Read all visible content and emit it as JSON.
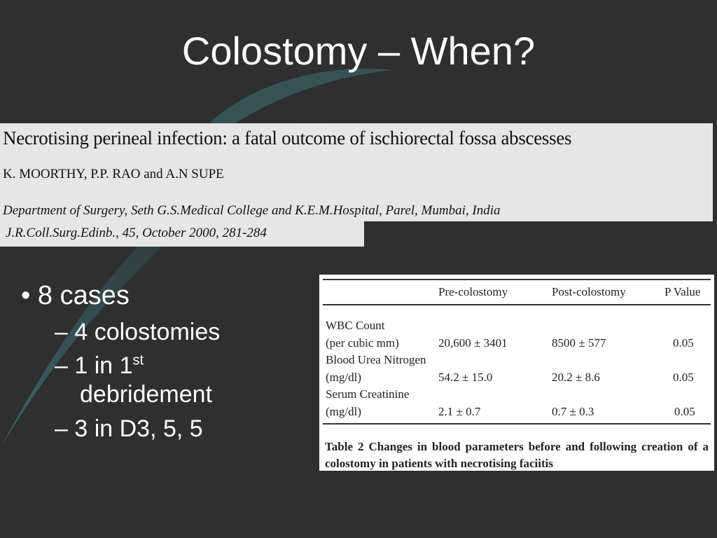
{
  "slide": {
    "title": "Colostomy – When?"
  },
  "article": {
    "headline": "Necrotising perineal infection: a fatal outcome of ischiorectal fossa abscesses",
    "authors": "K. MOORTHY, P.P. RAO and A.N SUPE",
    "department": "Department of Surgery, Seth G.S.Medical College and K.E.M.Hospital, Parel, Mumbai, India",
    "journal": "J.R.Coll.Surg.Edinb., 45, October 2000, 281-284"
  },
  "bullets": {
    "main": "8 cases",
    "sub1": "4 colostomies",
    "sub2_a": "1 in 1",
    "sub2_sup": "st",
    "sub2_b": "debridement",
    "sub3": "3 in D3, 5, 5"
  },
  "table": {
    "headers": [
      "Pre-colostomy",
      "Post-colostomy",
      "P Value"
    ],
    "rows": [
      {
        "name": "WBC Count",
        "unit": "(per cubic mm)",
        "pre": "20,600 ± 3401",
        "post": "8500 ± 577",
        "p": "0.05"
      },
      {
        "name": "Blood Urea Nitrogen",
        "unit": "(mg/dl)",
        "pre": "54.2 ± 15.0",
        "post": "20.2 ± 8.6",
        "p": "0.05"
      },
      {
        "name": "Serum Creatinine",
        "unit": "(mg/dl)",
        "pre": "2.1 ± 0.7",
        "post": "0.7 ± 0.3",
        "p": "0.05"
      }
    ],
    "caption": "Table 2 Changes in blood parameters before and following creation of a colostomy in patients with necrotising faciitis"
  }
}
